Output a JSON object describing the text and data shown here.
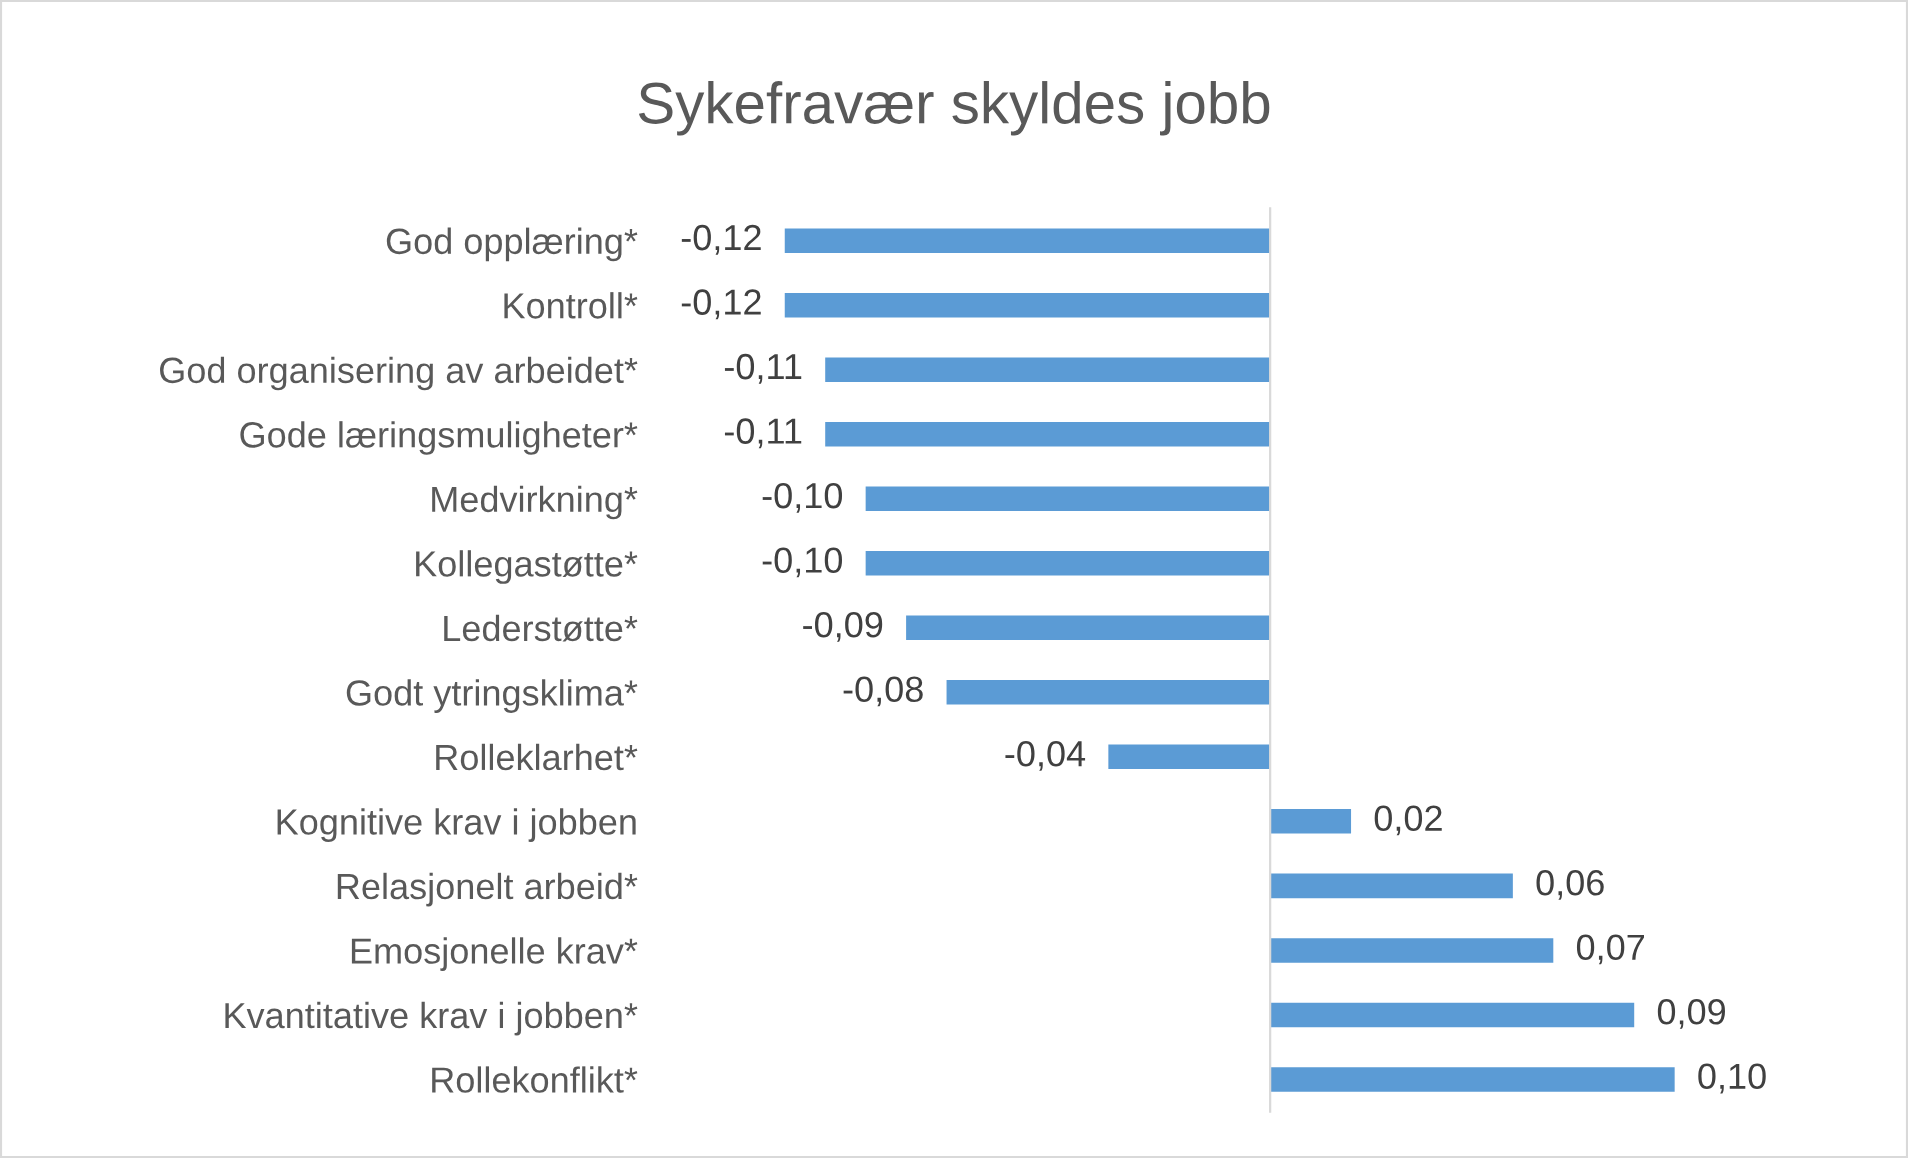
{
  "chart_data": {
    "type": "bar",
    "orientation": "horizontal",
    "title": "Sykefravær skyldes jobb",
    "categories": [
      "God opplæring*",
      "Kontroll*",
      "God organisering av arbeidet*",
      "Gode læringsmuligheter*",
      "Medvirkning*",
      "Kollegastøtte*",
      "Lederstøtte*",
      "Godt ytringsklima*",
      "Rolleklarhet*",
      "Kognitive krav i jobben",
      "Relasjonelt arbeid*",
      "Emosjonelle krav*",
      "Kvantitative krav i jobben*",
      "Rollekonflikt*"
    ],
    "values": [
      -0.12,
      -0.12,
      -0.11,
      -0.11,
      -0.1,
      -0.1,
      -0.09,
      -0.08,
      -0.04,
      0.02,
      0.06,
      0.07,
      0.09,
      0.1
    ],
    "value_labels": [
      "-0,12",
      "-0,12",
      "-0,11",
      "-0,11",
      "-0,10",
      "-0,10",
      "-0,09",
      "-0,08",
      "-0,04",
      "0,02",
      "0,06",
      "0,07",
      "0,09",
      "0,10"
    ],
    "color": "#5b9bd5",
    "grid": false,
    "legend": false
  }
}
